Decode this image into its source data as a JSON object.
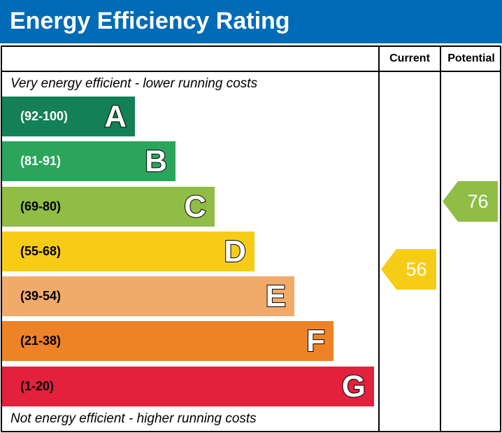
{
  "title": "Energy Efficiency Rating",
  "chart_data": {
    "type": "bar",
    "columns": [
      "Current",
      "Potential"
    ],
    "top_note": "Very energy efficient - lower running costs",
    "bottom_note": "Not energy efficient - higher running costs",
    "bands": [
      {
        "letter": "A",
        "range": "(92-100)",
        "color": "#138057",
        "text_color": "#ffffff"
      },
      {
        "letter": "B",
        "range": "(81-91)",
        "color": "#2aa55b",
        "text_color": "#ffffff"
      },
      {
        "letter": "C",
        "range": "(69-80)",
        "color": "#8fbd45",
        "text_color": "#000000"
      },
      {
        "letter": "D",
        "range": "(55-68)",
        "color": "#f6cc17",
        "text_color": "#000000"
      },
      {
        "letter": "E",
        "range": "(39-54)",
        "color": "#f2aa6b",
        "text_color": "#000000"
      },
      {
        "letter": "F",
        "range": "(21-38)",
        "color": "#ee8227",
        "text_color": "#000000"
      },
      {
        "letter": "G",
        "range": "(1-20)",
        "color": "#e3213c",
        "text_color": "#000000"
      }
    ],
    "current": {
      "value": "56",
      "band": "D",
      "color": "#f6cc17"
    },
    "potential": {
      "value": "76",
      "band": "C",
      "color": "#8fbd45"
    }
  }
}
